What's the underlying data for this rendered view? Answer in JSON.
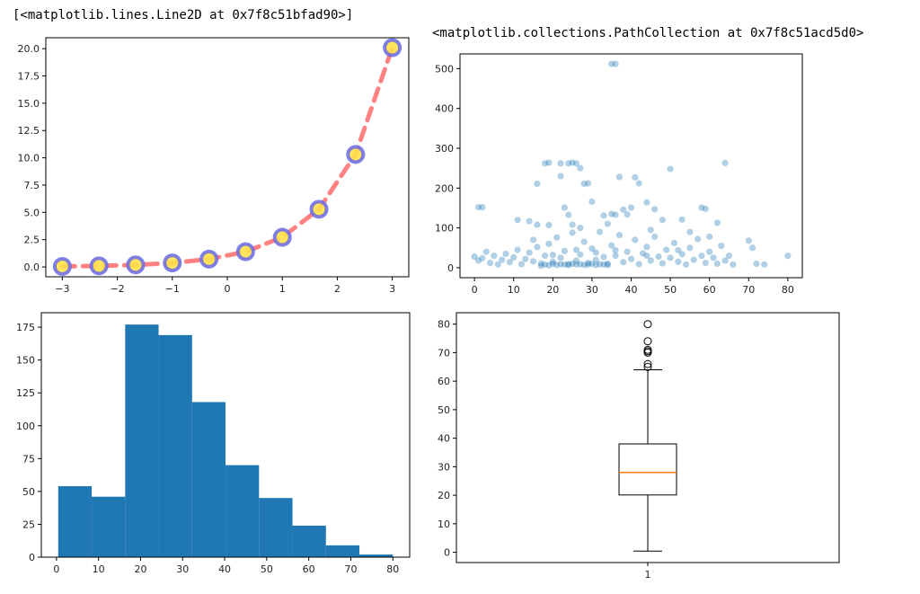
{
  "outputs": {
    "line_repr": "[<matplotlib.lines.Line2D at 0x7f8c51bfad90>]",
    "scatter_repr": "<matplotlib.collections.PathCollection at 0x7f8c51acd5d0>"
  },
  "colors": {
    "line": "#ff6b6b",
    "marker_face": "#ffe14a",
    "marker_edge": "#6a6ae8",
    "scatter": "#1f77b4",
    "hist": "#1f77b4",
    "box": "#000000",
    "median": "#ff7f0e"
  },
  "chart_data": [
    {
      "type": "line",
      "x": [
        -3,
        -2.333,
        -1.667,
        -1,
        -0.333,
        0.333,
        1,
        1.667,
        2.333,
        3
      ],
      "y": [
        0.05,
        0.1,
        0.19,
        0.37,
        0.72,
        1.4,
        2.72,
        5.29,
        10.31,
        20.09
      ],
      "xlim": [
        -3.3,
        3.3
      ],
      "ylim": [
        -0.9,
        21.0
      ],
      "xticks": [
        -3,
        -2,
        -1,
        0,
        1,
        2,
        3
      ],
      "xtick_labels": [
        "−3",
        "−2",
        "−1",
        "0",
        "1",
        "2",
        "3"
      ],
      "yticks": [
        0,
        2.5,
        5,
        7.5,
        10,
        12.5,
        15,
        17.5,
        20
      ],
      "ytick_labels": [
        "0.0",
        "2.5",
        "5.0",
        "7.5",
        "10.0",
        "12.5",
        "15.0",
        "17.5",
        "20.0"
      ],
      "line_style": "dashed",
      "markers": "circle",
      "grid": false
    },
    {
      "type": "scatter",
      "points": [
        [
          35,
          512
        ],
        [
          36,
          512
        ],
        [
          1,
          152
        ],
        [
          2,
          152
        ],
        [
          18,
          262
        ],
        [
          19,
          264
        ],
        [
          22,
          262
        ],
        [
          24,
          262
        ],
        [
          25,
          264
        ],
        [
          26,
          262
        ],
        [
          27,
          250
        ],
        [
          16,
          211
        ],
        [
          22,
          230
        ],
        [
          28,
          211
        ],
        [
          29,
          212
        ],
        [
          37,
          228
        ],
        [
          41,
          227
        ],
        [
          42,
          212
        ],
        [
          50,
          248
        ],
        [
          64,
          263
        ],
        [
          11,
          120
        ],
        [
          14,
          117
        ],
        [
          16,
          108
        ],
        [
          19,
          107
        ],
        [
          23,
          151
        ],
        [
          24,
          133
        ],
        [
          25,
          108
        ],
        [
          30,
          166
        ],
        [
          33,
          131
        ],
        [
          35,
          135
        ],
        [
          36,
          133
        ],
        [
          38,
          146
        ],
        [
          39,
          134
        ],
        [
          40,
          151
        ],
        [
          44,
          164
        ],
        [
          46,
          147
        ],
        [
          48,
          120
        ],
        [
          53,
          121
        ],
        [
          58,
          151
        ],
        [
          59,
          148
        ],
        [
          62,
          113
        ],
        [
          0,
          28
        ],
        [
          1,
          18
        ],
        [
          2,
          24
        ],
        [
          3,
          40
        ],
        [
          4,
          12
        ],
        [
          5,
          30
        ],
        [
          6,
          8
        ],
        [
          7,
          20
        ],
        [
          8,
          35
        ],
        [
          9,
          14
        ],
        [
          10,
          26
        ],
        [
          11,
          45
        ],
        [
          12,
          9
        ],
        [
          13,
          22
        ],
        [
          14,
          38
        ],
        [
          15,
          16
        ],
        [
          16,
          52
        ],
        [
          17,
          11
        ],
        [
          18,
          30
        ],
        [
          19,
          60
        ],
        [
          20,
          15
        ],
        [
          21,
          76
        ],
        [
          22,
          25
        ],
        [
          23,
          42
        ],
        [
          24,
          9
        ],
        [
          25,
          88
        ],
        [
          26,
          18
        ],
        [
          27,
          33
        ],
        [
          28,
          65
        ],
        [
          29,
          12
        ],
        [
          30,
          48
        ],
        [
          31,
          20
        ],
        [
          32,
          90
        ],
        [
          33,
          27
        ],
        [
          34,
          10
        ],
        [
          35,
          56
        ],
        [
          36,
          30
        ],
        [
          37,
          82
        ],
        [
          38,
          14
        ],
        [
          39,
          40
        ],
        [
          40,
          22
        ],
        [
          41,
          70
        ],
        [
          42,
          9
        ],
        [
          43,
          36
        ],
        [
          44,
          52
        ],
        [
          45,
          18
        ],
        [
          46,
          78
        ],
        [
          47,
          28
        ],
        [
          48,
          11
        ],
        [
          49,
          45
        ],
        [
          50,
          25
        ],
        [
          51,
          62
        ],
        [
          52,
          15
        ],
        [
          53,
          34
        ],
        [
          54,
          8
        ],
        [
          55,
          50
        ],
        [
          56,
          20
        ],
        [
          57,
          72
        ],
        [
          58,
          30
        ],
        [
          59,
          12
        ],
        [
          60,
          40
        ],
        [
          61,
          25
        ],
        [
          62,
          10
        ],
        [
          63,
          55
        ],
        [
          64,
          18
        ],
        [
          65,
          30
        ],
        [
          66,
          8
        ],
        [
          70,
          68
        ],
        [
          71,
          50
        ],
        [
          72,
          10
        ],
        [
          74,
          8
        ],
        [
          80,
          30
        ],
        [
          17,
          5
        ],
        [
          18,
          8
        ],
        [
          19,
          6
        ],
        [
          20,
          10
        ],
        [
          21,
          7
        ],
        [
          22,
          9
        ],
        [
          23,
          8
        ],
        [
          24,
          7
        ],
        [
          25,
          10
        ],
        [
          26,
          8
        ],
        [
          27,
          9
        ],
        [
          28,
          7
        ],
        [
          29,
          8
        ],
        [
          30,
          10
        ],
        [
          31,
          7
        ],
        [
          32,
          9
        ],
        [
          33,
          8
        ],
        [
          34,
          7
        ],
        [
          20,
          32
        ],
        [
          26,
          45
        ],
        [
          31,
          38
        ],
        [
          36,
          44
        ],
        [
          44,
          30
        ],
        [
          52,
          44
        ],
        [
          15,
          70
        ],
        [
          27,
          100
        ],
        [
          34,
          110
        ],
        [
          45,
          95
        ],
        [
          55,
          90
        ],
        [
          60,
          78
        ]
      ],
      "xlim": [
        -3.7,
        83.7
      ],
      "ylim": [
        -25,
        537
      ],
      "xticks": [
        0,
        10,
        20,
        30,
        40,
        50,
        60,
        70,
        80
      ],
      "yticks": [
        0,
        100,
        200,
        300,
        400,
        500
      ],
      "alpha": 0.35,
      "grid": false
    },
    {
      "type": "bar",
      "subtype": "histogram",
      "bin_edges": [
        0.42,
        8.38,
        16.34,
        24.29,
        32.25,
        40.21,
        48.17,
        56.13,
        64.08,
        72.04,
        80.0
      ],
      "values": [
        54,
        46,
        177,
        169,
        118,
        70,
        45,
        24,
        9,
        2
      ],
      "xlim": [
        -3.6,
        84.0
      ],
      "ylim": [
        0,
        186
      ],
      "xticks": [
        0,
        10,
        20,
        30,
        40,
        50,
        60,
        70,
        80
      ],
      "yticks": [
        0,
        25,
        50,
        75,
        100,
        125,
        150,
        175
      ],
      "grid": false
    },
    {
      "type": "box",
      "category": "1",
      "min": 0.42,
      "q1": 20.1,
      "median": 28,
      "q3": 38,
      "max": 64,
      "outliers": [
        65,
        66,
        70,
        70.5,
        71,
        74,
        80
      ],
      "ylim": [
        -3.6,
        84.0
      ],
      "yticks": [
        0,
        10,
        20,
        30,
        40,
        50,
        60,
        70,
        80
      ],
      "grid": false
    }
  ]
}
